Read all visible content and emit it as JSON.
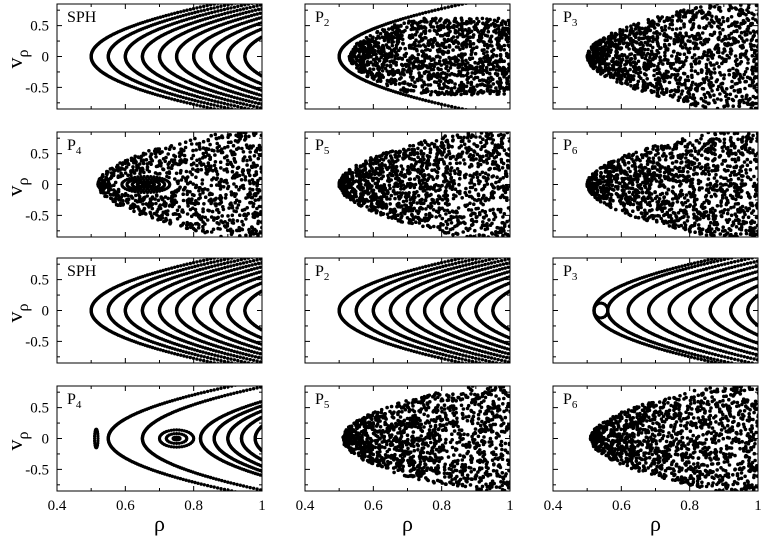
{
  "figure": {
    "x_axis_label": "ρ",
    "y_axis_label_main": "v",
    "y_axis_label_sub": "ρ",
    "x_tick_labels": [
      "0.4",
      "0.6",
      "0.8",
      "1"
    ],
    "y_tick_labels": [
      "0.5",
      "0",
      "-0.5"
    ]
  },
  "chart_data": [
    {
      "type": "scatter",
      "label_main": "SPH",
      "label_sub": "",
      "dynamics": "regular",
      "curves": [
        0.5,
        0.55,
        0.6,
        0.65,
        0.7,
        0.75,
        0.8,
        0.85,
        0.9,
        0.95
      ],
      "xlim": [
        0.4,
        1
      ],
      "ylim": [
        -0.85,
        0.85
      ]
    },
    {
      "type": "scatter",
      "label_main": "P",
      "label_sub": "2",
      "dynamics": "chaotic",
      "xmin": 0.53,
      "vmax": 0.62,
      "curves": [
        0.5
      ],
      "xlim": [
        0.4,
        1
      ],
      "ylim": [
        -0.85,
        0.85
      ]
    },
    {
      "type": "scatter",
      "label_main": "P",
      "label_sub": "3",
      "dynamics": "chaotic",
      "xmin": 0.5,
      "vmax": 0.85,
      "xlim": [
        0.4,
        1
      ],
      "ylim": [
        -0.85,
        0.85
      ]
    },
    {
      "type": "scatter",
      "label_main": "P",
      "label_sub": "4",
      "dynamics": "mixed",
      "xmin": 0.52,
      "vmax": 0.85,
      "islands": [
        {
          "x": 0.66,
          "v": 0,
          "rx": [
            0.01,
            0.025,
            0.04,
            0.055,
            0.07
          ],
          "rv": [
            0.015,
            0.04,
            0.07,
            0.1,
            0.13
          ]
        }
      ],
      "xlim": [
        0.4,
        1
      ],
      "ylim": [
        -0.85,
        0.85
      ]
    },
    {
      "type": "scatter",
      "label_main": "P",
      "label_sub": "5",
      "dynamics": "chaotic",
      "xmin": 0.5,
      "vmax": 0.85,
      "xlim": [
        0.4,
        1
      ],
      "ylim": [
        -0.85,
        0.85
      ]
    },
    {
      "type": "scatter",
      "label_main": "P",
      "label_sub": "6",
      "dynamics": "chaotic",
      "xmin": 0.5,
      "vmax": 0.85,
      "xlim": [
        0.4,
        1
      ],
      "ylim": [
        -0.85,
        0.85
      ]
    },
    {
      "type": "scatter",
      "label_main": "SPH",
      "label_sub": "",
      "dynamics": "regular",
      "curves": [
        0.5,
        0.55,
        0.6,
        0.65,
        0.7,
        0.75,
        0.8,
        0.85,
        0.9,
        0.95
      ],
      "xlim": [
        0.4,
        1
      ],
      "ylim": [
        -0.85,
        0.85
      ]
    },
    {
      "type": "scatter",
      "label_main": "P",
      "label_sub": "2",
      "dynamics": "regular",
      "curves": [
        0.5,
        0.55,
        0.6,
        0.65,
        0.7,
        0.75,
        0.8,
        0.85,
        0.9,
        0.95
      ],
      "xlim": [
        0.4,
        1
      ],
      "ylim": [
        -0.85,
        0.85
      ]
    },
    {
      "type": "scatter",
      "label_main": "P",
      "label_sub": "3",
      "dynamics": "mixed",
      "curves": [
        0.52,
        0.56,
        0.62,
        0.68,
        0.74,
        0.8,
        0.86,
        0.92,
        0.97
      ],
      "islands": [
        {
          "x": 0.54,
          "v": 0,
          "rx": [
            0.02
          ],
          "rv": [
            0.12
          ]
        }
      ],
      "xlim": [
        0.4,
        1
      ],
      "ylim": [
        -0.85,
        0.85
      ]
    },
    {
      "type": "scatter",
      "label_main": "P",
      "label_sub": "4",
      "dynamics": "mixed",
      "curves": [
        0.55,
        0.65,
        0.82,
        0.86,
        0.9,
        0.94,
        0.98
      ],
      "islands": [
        {
          "x": 0.75,
          "v": 0,
          "rx": [
            0.01,
            0.03,
            0.05
          ],
          "rv": [
            0.02,
            0.08,
            0.14
          ]
        },
        {
          "x": 0.515,
          "v": 0,
          "rx": [
            0.005
          ],
          "rv": [
            0.15
          ]
        }
      ],
      "xlim": [
        0.4,
        1
      ],
      "ylim": [
        -0.85,
        0.85
      ]
    },
    {
      "type": "scatter",
      "label_main": "P",
      "label_sub": "5",
      "dynamics": "chaotic",
      "xmin": 0.51,
      "vmax": 0.85,
      "xlim": [
        0.4,
        1
      ],
      "ylim": [
        -0.85,
        0.85
      ]
    },
    {
      "type": "scatter",
      "label_main": "P",
      "label_sub": "6",
      "dynamics": "chaotic",
      "xmin": 0.51,
      "vmax": 0.85,
      "xlim": [
        0.4,
        1
      ],
      "ylim": [
        -0.85,
        0.85
      ]
    }
  ]
}
